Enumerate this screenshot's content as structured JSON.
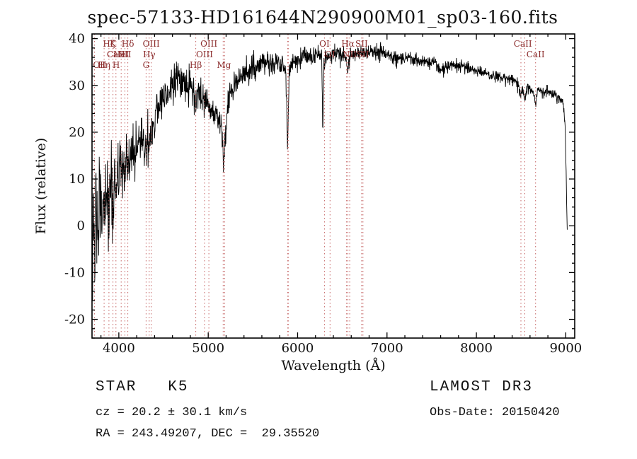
{
  "title": "spec-57133-HD161644N290900M01_sp03-160.fits",
  "annotations": {
    "class_line": "STAR   K5",
    "cz_line": "cz = 20.2 ± 30.1 km/s",
    "radec_line": "RA = 243.49207, DEC =  29.35520",
    "survey": "LAMOST DR3",
    "obsdate_line": "Obs-Date: 20150420"
  },
  "chart_data": {
    "type": "line",
    "title": "spec-57133-HD161644N290900M01_sp03-160.fits",
    "xlabel": "Wavelength (Å)",
    "ylabel": "Flux (relative)",
    "xlim": [
      3700,
      9100
    ],
    "ylim": [
      -24,
      41
    ],
    "xticks": [
      4000,
      5000,
      6000,
      7000,
      8000,
      9000
    ],
    "yticks": [
      -20,
      -10,
      0,
      10,
      20,
      30,
      40
    ],
    "x_minor_step": 200,
    "y_minor_step": 2,
    "grid": false,
    "legend": "none",
    "line_color": "#000000",
    "line_markers": {
      "line_color": "#c46262",
      "label_color": "#8b2c2c",
      "lines": [
        3727,
        3835,
        3889,
        3934,
        3968,
        4026,
        4068,
        4101,
        4305,
        4340,
        4363,
        4861,
        4959,
        5007,
        5167,
        5183,
        5890,
        5896,
        6300,
        6363,
        6548,
        6563,
        6583,
        6716,
        6731,
        8498,
        8542,
        8662
      ],
      "labels": [
        {
          "text": "Hζ",
          "wavelength": 3889,
          "row": 0
        },
        {
          "text": "K",
          "wavelength": 3934,
          "row": 0
        },
        {
          "text": "Hδ",
          "wavelength": 4101,
          "row": 0
        },
        {
          "text": "OIII",
          "wavelength": 4363,
          "row": 0
        },
        {
          "text": "OIII",
          "wavelength": 5007,
          "row": 0
        },
        {
          "text": "OI",
          "wavelength": 6300,
          "row": 0
        },
        {
          "text": "Hα",
          "wavelength": 6563,
          "row": 0
        },
        {
          "text": "SII",
          "wavelength": 6716,
          "row": 0
        },
        {
          "text": "CaII",
          "wavelength": 8520,
          "row": 0
        },
        {
          "text": "CaII",
          "wavelength": 3968,
          "row": 1
        },
        {
          "text": "HeI",
          "wavelength": 4026,
          "row": 1
        },
        {
          "text": "SII",
          "wavelength": 4068,
          "row": 1
        },
        {
          "text": "Hγ",
          "wavelength": 4340,
          "row": 1
        },
        {
          "text": "OIII",
          "wavelength": 4959,
          "row": 1
        },
        {
          "text": "OI",
          "wavelength": 6363,
          "row": 1
        },
        {
          "text": "NII",
          "wavelength": 6583,
          "row": 1
        },
        {
          "text": "SII",
          "wavelength": 6731,
          "row": 1
        },
        {
          "text": "CaII",
          "wavelength": 8662,
          "row": 1
        },
        {
          "text": "OII",
          "wavelength": 3727,
          "row": 2
        },
        {
          "text": "Hη",
          "wavelength": 3835,
          "row": 2
        },
        {
          "text": "H",
          "wavelength": 3970,
          "row": 2
        },
        {
          "text": "G",
          "wavelength": 4305,
          "row": 2
        },
        {
          "text": "Hβ",
          "wavelength": 4861,
          "row": 2
        },
        {
          "text": "Mg",
          "wavelength": 5175,
          "row": 2
        }
      ]
    },
    "spectrum": {
      "sample_step": 3,
      "noise_seed": 12345,
      "noise_profile": [
        [
          3700,
          6
        ],
        [
          3800,
          5.5
        ],
        [
          3900,
          4.5
        ],
        [
          4000,
          3.5
        ],
        [
          4150,
          3
        ],
        [
          4300,
          2.6
        ],
        [
          4500,
          2.2
        ],
        [
          4700,
          1.9
        ],
        [
          4900,
          1.7
        ],
        [
          5100,
          1.6
        ],
        [
          5300,
          1.5
        ],
        [
          5500,
          1.3
        ],
        [
          5700,
          1.2
        ],
        [
          5900,
          1.2
        ],
        [
          6100,
          1.1
        ],
        [
          6300,
          1.0
        ],
        [
          6500,
          0.9
        ],
        [
          6800,
          0.8
        ],
        [
          7100,
          0.8
        ],
        [
          7400,
          0.7
        ],
        [
          7700,
          0.7
        ],
        [
          8000,
          0.6
        ],
        [
          8300,
          0.6
        ],
        [
          8600,
          0.7
        ],
        [
          8900,
          0.6
        ],
        [
          9016,
          0.4
        ]
      ],
      "anchors": [
        [
          3700,
          0
        ],
        [
          3706,
          -12
        ],
        [
          3712,
          6
        ],
        [
          3718,
          -6
        ],
        [
          3724,
          3
        ],
        [
          3730,
          -13
        ],
        [
          3736,
          -2
        ],
        [
          3742,
          7
        ],
        [
          3750,
          -4
        ],
        [
          3758,
          5
        ],
        [
          3766,
          -8
        ],
        [
          3774,
          2
        ],
        [
          3782,
          8
        ],
        [
          3790,
          -3
        ],
        [
          3800,
          4
        ],
        [
          3810,
          -6
        ],
        [
          3820,
          5
        ],
        [
          3830,
          1
        ],
        [
          3840,
          7
        ],
        [
          3850,
          2
        ],
        [
          3860,
          8
        ],
        [
          3875,
          4
        ],
        [
          3889,
          1
        ],
        [
          3900,
          8
        ],
        [
          3915,
          10
        ],
        [
          3934,
          2
        ],
        [
          3945,
          9
        ],
        [
          3955,
          11
        ],
        [
          3968,
          4
        ],
        [
          3980,
          10
        ],
        [
          3995,
          12
        ],
        [
          4010,
          11
        ],
        [
          4026,
          9
        ],
        [
          4040,
          13
        ],
        [
          4055,
          12
        ],
        [
          4068,
          10
        ],
        [
          4085,
          13
        ],
        [
          4101,
          8
        ],
        [
          4115,
          14
        ],
        [
          4130,
          15
        ],
        [
          4150,
          14
        ],
        [
          4175,
          16
        ],
        [
          4200,
          17
        ],
        [
          4230,
          18
        ],
        [
          4260,
          19
        ],
        [
          4285,
          18
        ],
        [
          4305,
          16
        ],
        [
          4320,
          18
        ],
        [
          4340,
          16
        ],
        [
          4355,
          20
        ],
        [
          4363,
          19
        ],
        [
          4380,
          22
        ],
        [
          4400,
          23
        ],
        [
          4430,
          25
        ],
        [
          4460,
          26
        ],
        [
          4490,
          27
        ],
        [
          4520,
          28
        ],
        [
          4550,
          29
        ],
        [
          4580,
          29
        ],
        [
          4610,
          30
        ],
        [
          4640,
          31
        ],
        [
          4670,
          31
        ],
        [
          4700,
          30
        ],
        [
          4730,
          31
        ],
        [
          4760,
          30
        ],
        [
          4790,
          30
        ],
        [
          4820,
          29
        ],
        [
          4845,
          28
        ],
        [
          4861,
          25
        ],
        [
          4880,
          28
        ],
        [
          4900,
          28
        ],
        [
          4925,
          27
        ],
        [
          4950,
          27
        ],
        [
          4975,
          26
        ],
        [
          5000,
          26
        ],
        [
          5030,
          25
        ],
        [
          5060,
          24
        ],
        [
          5090,
          24
        ],
        [
          5120,
          23
        ],
        [
          5145,
          21
        ],
        [
          5160,
          17
        ],
        [
          5175,
          14
        ],
        [
          5190,
          18
        ],
        [
          5210,
          23
        ],
        [
          5235,
          27
        ],
        [
          5260,
          29
        ],
        [
          5290,
          30
        ],
        [
          5320,
          31
        ],
        [
          5360,
          32
        ],
        [
          5400,
          32.5
        ],
        [
          5450,
          33
        ],
        [
          5500,
          33.5
        ],
        [
          5550,
          34
        ],
        [
          5600,
          34.5
        ],
        [
          5650,
          34.5
        ],
        [
          5700,
          35
        ],
        [
          5750,
          35
        ],
        [
          5800,
          35
        ],
        [
          5840,
          34.5
        ],
        [
          5870,
          33
        ],
        [
          5888,
          17
        ],
        [
          5905,
          31
        ],
        [
          5925,
          34
        ],
        [
          5950,
          35
        ],
        [
          5990,
          35.5
        ],
        [
          6030,
          35.5
        ],
        [
          6070,
          36
        ],
        [
          6110,
          36
        ],
        [
          6150,
          36
        ],
        [
          6190,
          36.5
        ],
        [
          6230,
          36
        ],
        [
          6270,
          36.5
        ],
        [
          6282,
          20
        ],
        [
          6294,
          35
        ],
        [
          6320,
          36
        ],
        [
          6350,
          36
        ],
        [
          6380,
          36.5
        ],
        [
          6420,
          37
        ],
        [
          6460,
          36.5
        ],
        [
          6500,
          36.5
        ],
        [
          6540,
          36
        ],
        [
          6563,
          33.5
        ],
        [
          6585,
          36
        ],
        [
          6620,
          36.5
        ],
        [
          6660,
          37
        ],
        [
          6700,
          37
        ],
        [
          6740,
          37
        ],
        [
          6780,
          37
        ],
        [
          6820,
          37.5
        ],
        [
          6860,
          37
        ],
        [
          6900,
          37
        ],
        [
          6940,
          37
        ],
        [
          6980,
          36.5
        ],
        [
          7020,
          36.5
        ],
        [
          7060,
          36
        ],
        [
          7100,
          36
        ],
        [
          7150,
          36
        ],
        [
          7200,
          35.8
        ],
        [
          7250,
          35.5
        ],
        [
          7300,
          35.5
        ],
        [
          7350,
          35.2
        ],
        [
          7400,
          35
        ],
        [
          7450,
          35
        ],
        [
          7500,
          34.8
        ],
        [
          7550,
          34.5
        ],
        [
          7590,
          33.5
        ],
        [
          7620,
          33
        ],
        [
          7650,
          33.5
        ],
        [
          7680,
          34.2
        ],
        [
          7720,
          34.3
        ],
        [
          7760,
          34.2
        ],
        [
          7800,
          34
        ],
        [
          7850,
          34
        ],
        [
          7900,
          33.8
        ],
        [
          7950,
          33.5
        ],
        [
          8000,
          33.2
        ],
        [
          8050,
          33
        ],
        [
          8100,
          32.8
        ],
        [
          8150,
          32.3
        ],
        [
          8200,
          32
        ],
        [
          8250,
          31.8
        ],
        [
          8300,
          31.8
        ],
        [
          8350,
          31.5
        ],
        [
          8400,
          31.3
        ],
        [
          8440,
          31
        ],
        [
          8470,
          30
        ],
        [
          8498,
          28
        ],
        [
          8515,
          29.5
        ],
        [
          8542,
          26.5
        ],
        [
          8560,
          29
        ],
        [
          8590,
          29.5
        ],
        [
          8620,
          29
        ],
        [
          8645,
          28
        ],
        [
          8662,
          26
        ],
        [
          8680,
          28.5
        ],
        [
          8710,
          29
        ],
        [
          8740,
          29
        ],
        [
          8770,
          28.8
        ],
        [
          8800,
          28.6
        ],
        [
          8830,
          28.4
        ],
        [
          8860,
          28.2
        ],
        [
          8890,
          28
        ],
        [
          8915,
          27.5
        ],
        [
          8940,
          27
        ],
        [
          8960,
          26.5
        ],
        [
          8980,
          25
        ],
        [
          8995,
          20
        ],
        [
          9005,
          10
        ],
        [
          9012,
          2
        ],
        [
          9016,
          0
        ]
      ]
    }
  }
}
